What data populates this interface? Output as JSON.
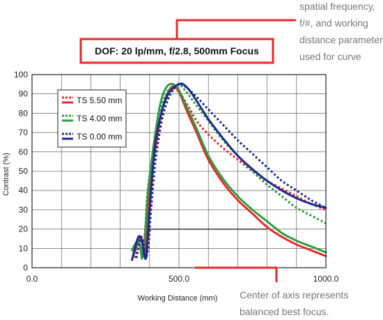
{
  "chart_data": {
    "type": "line",
    "title": "DOF: 20 lp/mm, f/2.8, 500mm Focus",
    "xlabel": "Working Distance (mm)",
    "ylabel": "Contrast (%)",
    "xlim": [
      0,
      1000
    ],
    "ylim": [
      0,
      100
    ],
    "x_ticks": [
      0,
      500,
      1000
    ],
    "x_tick_labels": [
      "0.0",
      "500.0",
      "1000.0"
    ],
    "y_ticks": [
      0,
      10,
      20,
      30,
      40,
      50,
      60,
      70,
      80,
      90,
      100
    ],
    "grid": true,
    "legend_position": "top-left",
    "threshold_line": {
      "y": 20,
      "x": [
        390,
        800
      ]
    },
    "series": [
      {
        "name": "TS 5.50 mm",
        "color": "#e8282a",
        "style": "dotted",
        "x": [
          350,
          360,
          368,
          375,
          380,
          390,
          400,
          420,
          440,
          460,
          475,
          500,
          530,
          560,
          600,
          650,
          700,
          750,
          800,
          850,
          900,
          950,
          1000
        ],
        "y": [
          5,
          12,
          15,
          13,
          8,
          22,
          45,
          65,
          80,
          89,
          93,
          91,
          84,
          76,
          69,
          62,
          56,
          50,
          45,
          41,
          37,
          33,
          30
        ]
      },
      {
        "name": "TS 5.50 mm",
        "color": "#e8282a",
        "style": "solid",
        "x": [
          350,
          360,
          368,
          376,
          382,
          390,
          400,
          420,
          440,
          460,
          480,
          500,
          530,
          560,
          600,
          650,
          700,
          750,
          800,
          850,
          900,
          950,
          1000
        ],
        "y": [
          8,
          14,
          15,
          12,
          8,
          15,
          40,
          62,
          80,
          90,
          94,
          91,
          80,
          70,
          56,
          44,
          35,
          28,
          21,
          16,
          12,
          9,
          6
        ]
      },
      {
        "name": "TS 4.00 mm",
        "color": "#2a9e3e",
        "style": "dotted",
        "x": [
          345,
          355,
          362,
          370,
          375,
          385,
          395,
          420,
          440,
          460,
          480,
          500,
          520,
          550,
          600,
          650,
          700,
          750,
          800,
          850,
          900,
          950,
          1000
        ],
        "y": [
          6,
          10,
          13,
          10,
          5,
          20,
          42,
          68,
          83,
          91,
          94,
          95,
          92,
          86,
          76,
          66,
          58,
          50,
          43,
          37,
          31,
          27,
          23
        ]
      },
      {
        "name": "TS 4.00 mm",
        "color": "#2a9e3e",
        "style": "solid",
        "x": [
          340,
          350,
          360,
          368,
          375,
          385,
          395,
          420,
          440,
          460,
          480,
          500,
          530,
          560,
          600,
          650,
          700,
          750,
          800,
          850,
          900,
          950,
          1000
        ],
        "y": [
          9,
          12,
          14,
          11,
          5,
          18,
          40,
          70,
          87,
          94,
          95,
          92,
          82,
          72,
          58,
          46,
          37,
          30,
          24,
          18,
          14,
          11,
          8
        ]
      },
      {
        "name": "TS 0.00 mm",
        "color": "#1d2a8c",
        "style": "dotted",
        "x": [
          355,
          365,
          372,
          380,
          385,
          395,
          405,
          420,
          440,
          460,
          480,
          500,
          520,
          550,
          600,
          650,
          700,
          750,
          800,
          850,
          900,
          950,
          1000
        ],
        "y": [
          5,
          12,
          16,
          12,
          5,
          10,
          30,
          55,
          75,
          86,
          92,
          95,
          94,
          90,
          82,
          74,
          66,
          59,
          52,
          45,
          40,
          35,
          31
        ]
      },
      {
        "name": "TS 0.00 mm",
        "color": "#1d2a8c",
        "style": "solid",
        "x": [
          340,
          350,
          362,
          372,
          380,
          388,
          395,
          405,
          420,
          440,
          460,
          480,
          500,
          515,
          540,
          570,
          600,
          650,
          700,
          750,
          800,
          850,
          900,
          950,
          1000
        ],
        "y": [
          4,
          10,
          16,
          15,
          8,
          5,
          18,
          40,
          65,
          80,
          89,
          93,
          95,
          95,
          91,
          84,
          77,
          67,
          58,
          51,
          45,
          40,
          36,
          33,
          31
        ]
      }
    ],
    "legend": [
      {
        "label": "TS 5.50 mm",
        "color": "#e8282a"
      },
      {
        "label": "TS 4.00 mm",
        "color": "#2a9e3e"
      },
      {
        "label": "TS 0.00 mm",
        "color": "#1d2a8c"
      }
    ],
    "annotations": {
      "top_right": [
        "spatial frequency,",
        "f/#, and working",
        "distance parameters",
        "used for curve"
      ],
      "bottom_right": [
        "Center of axis represents",
        "balanced best focus."
      ]
    }
  }
}
